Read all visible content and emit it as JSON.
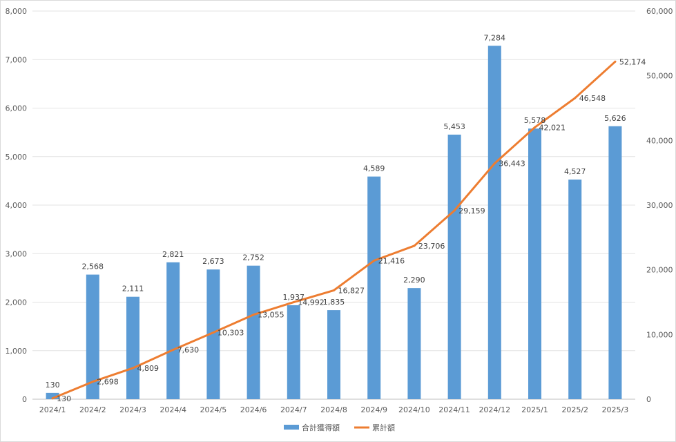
{
  "chart_data": {
    "type": "bar",
    "categories": [
      "2024/1",
      "2024/2",
      "2024/3",
      "2024/4",
      "2024/5",
      "2024/6",
      "2024/7",
      "2024/8",
      "2024/9",
      "2024/10",
      "2024/11",
      "2024/12",
      "2025/1",
      "2025/2",
      "2025/3"
    ],
    "series": [
      {
        "name": "合計獲得額",
        "type": "bar",
        "axis": "left",
        "color": "#5b9bd5",
        "values": [
          130,
          2568,
          2111,
          2821,
          2673,
          2752,
          1937,
          1835,
          4589,
          2290,
          5453,
          7284,
          5578,
          4527,
          5626
        ]
      },
      {
        "name": "累計額",
        "type": "line",
        "axis": "right",
        "color": "#ed7d31",
        "values": [
          130,
          2698,
          4809,
          7630,
          10303,
          13055,
          14992,
          16827,
          21416,
          23706,
          29159,
          36443,
          42021,
          46548,
          52174
        ]
      }
    ],
    "left_axis": {
      "min": 0,
      "max": 8000,
      "step": 1000,
      "tick_labels": [
        "0",
        "1,000",
        "2,000",
        "3,000",
        "4,000",
        "5,000",
        "6,000",
        "7,000",
        "8,000"
      ]
    },
    "right_axis": {
      "min": 0,
      "max": 60000,
      "step": 10000,
      "tick_labels": [
        "0",
        "10,000",
        "20,000",
        "30,000",
        "40,000",
        "50,000",
        "60,000"
      ]
    },
    "bar_labels": [
      "130",
      "2,568",
      "2,111",
      "2,821",
      "2,673",
      "2,752",
      "1,937",
      "1,835",
      "4,589",
      "2,290",
      "5,453",
      "7,284",
      "5,578",
      "4,527",
      "5,626"
    ],
    "line_labels": [
      "130",
      "2,698",
      "4,809",
      "7,630",
      "10,303",
      "13,055",
      "14,992",
      "16,827",
      "21,416",
      "23,706",
      "29,159",
      "36,443",
      "42,021",
      "46,548",
      "52,174"
    ],
    "grid": true,
    "legend_position": "bottom",
    "title": "",
    "xlabel": "",
    "ylabel": ""
  }
}
